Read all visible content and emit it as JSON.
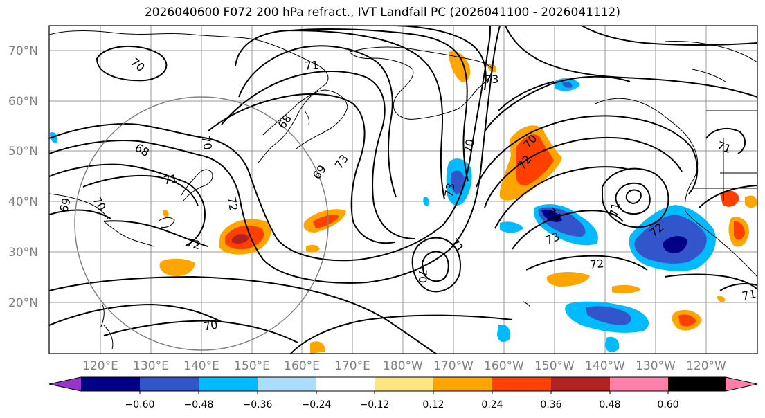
{
  "title": "2026040600 F072 200 hPa refract., IVT Landfall PC (2026041100 - 2026041112)",
  "map": {
    "lat_labels": [
      "70°N",
      "60°N",
      "50°N",
      "40°N",
      "30°N",
      "20°N"
    ],
    "lon_labels": [
      "120°E",
      "130°E",
      "140°E",
      "150°E",
      "160°E",
      "170°E",
      "180°W",
      "170°W",
      "160°W",
      "150°W",
      "140°W",
      "130°W",
      "120°W"
    ],
    "contour_labels": [
      "70",
      "71",
      "73",
      "68",
      "70",
      "68",
      "71",
      "69",
      "70",
      "69",
      "73",
      "72",
      "72",
      "73",
      "70",
      "71",
      "70",
      "72",
      "74",
      "73",
      "70",
      "71",
      "72",
      "72",
      "71",
      "70",
      "71"
    ]
  },
  "colorbar": {
    "colors": [
      "#9933cc",
      "#000088",
      "#3355cc",
      "#00bbff",
      "#aaddff",
      "#ffffff",
      "#ffe580",
      "#ffa500",
      "#ff4000",
      "#b22222",
      "#ff80aa"
    ],
    "ticks": [
      "−0.60",
      "−0.48",
      "−0.36",
      "−0.24",
      "−0.12",
      "0.12",
      "0.24",
      "0.36",
      "0.48",
      "0.60"
    ]
  }
}
